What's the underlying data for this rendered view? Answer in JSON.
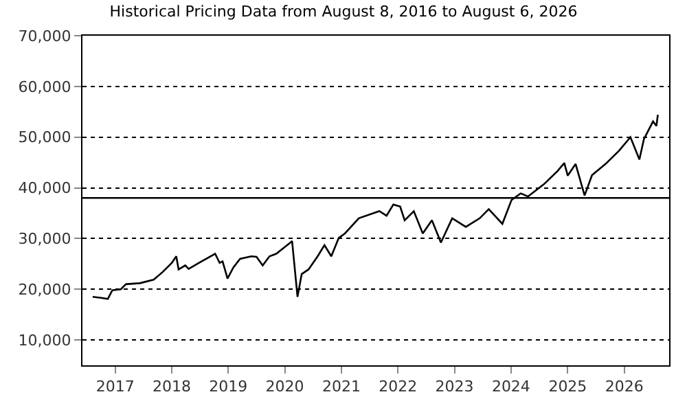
{
  "chart_data": {
    "type": "line",
    "title": "Historical Pricing Data from August 8, 2016 to August 6, 2026",
    "x": [
      "2016-08-08",
      "2016-10-01",
      "2016-11-14",
      "2016-12-13",
      "2017-02-06",
      "2017-03-11",
      "2017-06-10",
      "2017-09-06",
      "2017-11-03",
      "2018-01-01",
      "2018-01-30",
      "2018-02-14",
      "2018-03-29",
      "2018-04-20",
      "2018-06-25",
      "2018-10-08",
      "2018-11-06",
      "2018-11-25",
      "2018-12-27",
      "2019-02-03",
      "2019-03-18",
      "2019-05-30",
      "2019-07-02",
      "2019-08-11",
      "2019-09-24",
      "2019-11-07",
      "2020-02-06",
      "2020-02-17",
      "2020-03-23",
      "2020-04-19",
      "2020-06-02",
      "2020-07-31",
      "2020-09-13",
      "2020-10-27",
      "2020-12-14",
      "2021-01-23",
      "2021-04-23",
      "2021-09-02",
      "2021-10-19",
      "2021-12-02",
      "2022-01-15",
      "2022-02-13",
      "2022-04-13",
      "2022-06-10",
      "2022-08-08",
      "2022-10-05",
      "2022-12-17",
      "2023-03-15",
      "2023-06-13",
      "2023-08-10",
      "2023-11-06",
      "2024-01-04",
      "2024-03-03",
      "2024-04-20",
      "2024-07-31",
      "2024-10-27",
      "2024-12-10",
      "2025-01-01",
      "2025-02-21",
      "2025-04-20",
      "2025-06-07",
      "2025-09-02",
      "2025-11-28",
      "2026-02-10",
      "2026-04-09",
      "2026-05-08",
      "2026-07-06",
      "2026-07-28",
      "2026-08-06"
    ],
    "series": [
      {
        "color": "#000000",
        "values": [
          18500,
          18300,
          18100,
          19800,
          20000,
          21000,
          21200,
          21900,
          23400,
          25200,
          26500,
          23900,
          24700,
          24000,
          25200,
          27000,
          25200,
          25500,
          22100,
          24300,
          26000,
          26500,
          26400,
          24700,
          26500,
          27000,
          29200,
          29500,
          18500,
          23000,
          23900,
          26500,
          28700,
          26500,
          30100,
          31000,
          34000,
          35400,
          34500,
          36700,
          36300,
          33600,
          35400,
          31000,
          33600,
          29200,
          34000,
          32300,
          34000,
          35800,
          32900,
          37600,
          38900,
          38300,
          40700,
          43300,
          44900,
          42400,
          44700,
          38500,
          42500,
          44700,
          47300,
          50000,
          45600,
          49600,
          53100,
          52200,
          54400
        ]
      }
    ],
    "xlim": [
      "2016-06-03",
      "2026-10-18"
    ],
    "xticks": [
      "2017",
      "2018",
      "2019",
      "2020",
      "2021",
      "2022",
      "2023",
      "2024",
      "2025",
      "2026"
    ],
    "ylim": [
      5000,
      70000
    ],
    "yticks": [
      {
        "value": 10000,
        "label": "10,000"
      },
      {
        "value": 20000,
        "label": "20,000"
      },
      {
        "value": 30000,
        "label": "30,000"
      },
      {
        "value": 40000,
        "label": "40,000"
      },
      {
        "value": 50000,
        "label": "50,000"
      },
      {
        "value": 60000,
        "label": "60,000"
      },
      {
        "value": 70000,
        "label": "70,000"
      }
    ],
    "grid": "y",
    "ref_lines": [
      {
        "axis": "y",
        "value": 38000,
        "color": "#000000",
        "line_style": "solid"
      }
    ],
    "marker": "none",
    "line_style": "solid"
  }
}
